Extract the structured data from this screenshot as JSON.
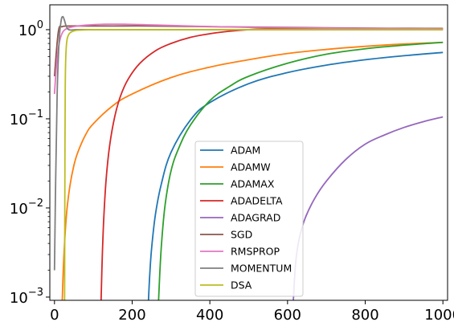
{
  "chart_data": {
    "type": "line",
    "title": "",
    "xlabel": "",
    "ylabel": "",
    "xlim": [
      -12,
      1012
    ],
    "ylim": [
      0.00092,
      1.9
    ],
    "yscale": "log",
    "grid": false,
    "legend_position": "center",
    "x_ticks": [
      {
        "value": 0,
        "label": "0"
      },
      {
        "value": 200,
        "label": "200"
      },
      {
        "value": 400,
        "label": "400"
      },
      {
        "value": 600,
        "label": "600"
      },
      {
        "value": 800,
        "label": "800"
      },
      {
        "value": 1000,
        "label": "1000"
      }
    ],
    "y_ticks": [
      {
        "value": 0.001,
        "base": "10",
        "exp": "−3"
      },
      {
        "value": 0.01,
        "base": "10",
        "exp": "−2"
      },
      {
        "value": 0.1,
        "base": "10",
        "exp": "−1"
      },
      {
        "value": 1,
        "base": "10",
        "exp": "0"
      }
    ],
    "series": [
      {
        "name": "ADAM",
        "color": "#1f77b4",
        "x": [
          242,
          245,
          250,
          260,
          275,
          300,
          350,
          400,
          500,
          600,
          700,
          800,
          900,
          1000
        ],
        "y": [
          0.00092,
          0.0017,
          0.0035,
          0.0085,
          0.0185,
          0.042,
          0.097,
          0.152,
          0.248,
          0.33,
          0.4,
          0.46,
          0.51,
          0.555
        ]
      },
      {
        "name": "ADAMW",
        "color": "#ff7f0e",
        "x": [
          20,
          23,
          27,
          32,
          40,
          50,
          60,
          80,
          100,
          150,
          200,
          300,
          400,
          500,
          600,
          700,
          800,
          900,
          1000
        ],
        "y": [
          0.00092,
          0.0022,
          0.0048,
          0.0095,
          0.018,
          0.03,
          0.042,
          0.066,
          0.088,
          0.14,
          0.19,
          0.29,
          0.38,
          0.46,
          0.54,
          0.6,
          0.65,
          0.69,
          0.72
        ]
      },
      {
        "name": "ADAMAX",
        "color": "#2ca02c",
        "x": [
          268,
          271,
          276,
          285,
          300,
          320,
          350,
          400,
          450,
          500,
          600,
          700,
          800,
          900,
          1000
        ],
        "y": [
          0.00092,
          0.0018,
          0.0042,
          0.011,
          0.026,
          0.047,
          0.085,
          0.16,
          0.23,
          0.3,
          0.42,
          0.53,
          0.61,
          0.67,
          0.72
        ]
      },
      {
        "name": "ADADELTA",
        "color": "#d62728",
        "x": [
          120,
          123,
          127,
          133,
          142,
          155,
          170,
          190,
          220,
          260,
          300,
          350,
          400,
          450,
          500,
          550,
          600,
          650,
          700,
          800,
          900,
          1000
        ],
        "y": [
          0.00092,
          0.0028,
          0.0078,
          0.021,
          0.05,
          0.105,
          0.18,
          0.28,
          0.42,
          0.58,
          0.7,
          0.82,
          0.9,
          0.96,
          1.0,
          1.02,
          1.03,
          1.03,
          1.03,
          1.03,
          1.03,
          1.03
        ]
      },
      {
        "name": "ADAGRAD",
        "color": "#9467bd",
        "x": [
          615,
          618,
          622,
          630,
          645,
          670,
          700,
          750,
          800,
          850,
          900,
          950,
          1000
        ],
        "y": [
          0.00092,
          0.0016,
          0.0027,
          0.0045,
          0.0076,
          0.0128,
          0.02,
          0.035,
          0.052,
          0.066,
          0.08,
          0.093,
          0.105
        ]
      },
      {
        "name": "SGD",
        "color": "#8c564b",
        "x": [
          0,
          10,
          20,
          40,
          80,
          150,
          250,
          400,
          600,
          800,
          1000
        ],
        "y": [
          0.3,
          0.95,
          1.08,
          1.1,
          1.1,
          1.1,
          1.1,
          1.08,
          1.06,
          1.04,
          1.03
        ]
      },
      {
        "name": "RMSPROP",
        "color": "#e377c2",
        "x": [
          0,
          3,
          6,
          10,
          15,
          22,
          30,
          40,
          60,
          90,
          130,
          180,
          250,
          350,
          500,
          700,
          1000
        ],
        "y": [
          0.19,
          0.3,
          0.44,
          0.62,
          0.8,
          0.95,
          1.02,
          1.06,
          1.1,
          1.13,
          1.15,
          1.15,
          1.13,
          1.1,
          1.06,
          1.04,
          1.02
        ]
      },
      {
        "name": "MOMENTUM",
        "color": "#7f7f7f",
        "x": [
          0,
          3,
          7,
          12,
          17,
          21,
          25,
          30,
          35,
          42,
          55,
          80,
          120,
          200,
          400,
          700,
          1000
        ],
        "y": [
          0.002,
          0.02,
          0.2,
          0.75,
          1.25,
          1.4,
          1.3,
          1.1,
          1.01,
          0.99,
          1.0,
          1.0,
          1.0,
          1.0,
          1.0,
          1.0,
          1.0
        ]
      },
      {
        "name": "DSA",
        "color": "#bcbd22",
        "x": [
          26,
          27,
          28,
          30,
          33,
          38,
          45,
          55,
          70,
          100,
          200,
          400,
          700,
          1000
        ],
        "y": [
          0.00092,
          0.05,
          0.3,
          0.6,
          0.8,
          0.9,
          0.95,
          0.98,
          0.99,
          1.0,
          1.0,
          1.0,
          1.0,
          1.0
        ]
      }
    ]
  }
}
